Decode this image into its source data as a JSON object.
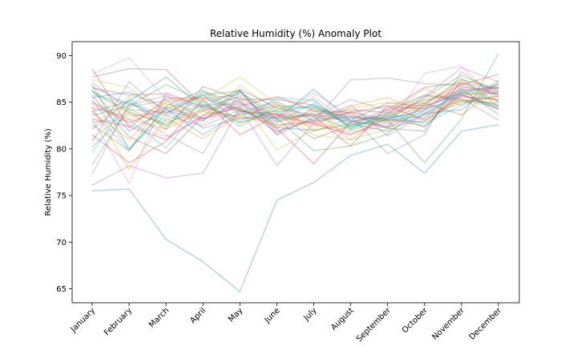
{
  "chart_data": {
    "type": "line",
    "title": "Relative Humidity (%) Anomaly Plot",
    "xlabel": "",
    "ylabel": "Relative Humidity (%)",
    "categories": [
      "January",
      "February",
      "March",
      "April",
      "May",
      "June",
      "July",
      "August",
      "September",
      "October",
      "November",
      "December"
    ],
    "ylim": [
      63.5,
      91.5
    ],
    "yticks": [
      65,
      70,
      75,
      80,
      85,
      90
    ],
    "grid": false,
    "legend": "none",
    "line_opacity": 0.3,
    "palette": [
      "#1f77b4",
      "#ff7f0e",
      "#2ca02c",
      "#d62728",
      "#9467bd",
      "#8c564b",
      "#e377c2",
      "#7f7f7f",
      "#bcbd22",
      "#17becf"
    ],
    "series": [
      {
        "values": [
          75.5,
          75.7,
          70.3,
          67.9,
          64.7,
          74.5,
          76.4,
          79.3,
          80.5,
          77.4,
          81.9,
          82.6
        ]
      },
      {
        "values": [
          84.5,
          83.2,
          82.1,
          84.0,
          83.5,
          82.6,
          82.9,
          81.8,
          82.4,
          83.0,
          85.7,
          86.5
        ]
      },
      {
        "values": [
          86.9,
          80.0,
          84.3,
          85.8,
          86.2,
          83.2,
          83.7,
          82.0,
          83.1,
          78.5,
          83.2,
          90.2
        ]
      },
      {
        "values": [
          83.2,
          82.4,
          81.0,
          83.6,
          84.4,
          82.2,
          78.4,
          82.9,
          83.7,
          84.9,
          87.0,
          85.9
        ]
      },
      {
        "values": [
          76.1,
          78.2,
          76.9,
          77.4,
          84.4,
          78.2,
          82.8,
          84.0,
          83.1,
          85.6,
          88.7,
          87.2
        ]
      },
      {
        "values": [
          87.7,
          88.6,
          88.5,
          84.6,
          83.2,
          83.8,
          81.1,
          82.5,
          84.2,
          86.6,
          87.1,
          86.4
        ]
      },
      {
        "values": [
          88.0,
          89.8,
          85.3,
          83.2,
          85.1,
          83.5,
          86.0,
          83.6,
          82.2,
          88.1,
          88.9,
          85.0
        ]
      },
      {
        "values": [
          77.3,
          84.9,
          83.6,
          82.4,
          84.2,
          82.5,
          82.9,
          87.4,
          87.6,
          87.0,
          86.8,
          85.8
        ]
      },
      {
        "values": [
          81.0,
          84.3,
          82.4,
          84.1,
          85.3,
          79.9,
          82.0,
          82.5,
          83.6,
          84.4,
          85.1,
          84.5
        ]
      },
      {
        "values": [
          85.3,
          80.0,
          83.7,
          85.8,
          82.9,
          85.5,
          85.2,
          82.1,
          84.0,
          82.3,
          86.0,
          86.6
        ]
      },
      {
        "values": [
          86.3,
          81.9,
          84.2,
          83.0,
          86.2,
          82.3,
          82.0,
          82.7,
          81.9,
          83.8,
          84.2,
          87.2
        ]
      },
      {
        "values": [
          84.5,
          77.8,
          83.3,
          81.1,
          83.7,
          84.6,
          81.9,
          83.3,
          83.2,
          85.3,
          86.2,
          84.3
        ]
      },
      {
        "values": [
          82.6,
          79.8,
          84.6,
          86.3,
          84.1,
          83.3,
          79.8,
          80.3,
          81.6,
          84.7,
          87.6,
          84.5
        ]
      },
      {
        "values": [
          81.5,
          78.5,
          80.8,
          85.3,
          81.5,
          83.6,
          82.7,
          81.5,
          83.3,
          82.4,
          86.3,
          86.6
        ]
      },
      {
        "values": [
          86.7,
          84.7,
          85.7,
          83.2,
          84.9,
          81.6,
          84.5,
          82.8,
          83.8,
          85.2,
          85.9,
          84.2
        ]
      },
      {
        "values": [
          85.7,
          81.3,
          79.5,
          83.5,
          86.3,
          81.5,
          83.4,
          83.8,
          82.2,
          81.9,
          87.4,
          86.5
        ]
      },
      {
        "values": [
          83.2,
          76.3,
          86.1,
          84.4,
          82.8,
          83.8,
          82.7,
          81.6,
          82.9,
          85.0,
          83.6,
          87.1
        ]
      },
      {
        "values": [
          80.2,
          83.9,
          81.5,
          79.5,
          86.2,
          81.9,
          83.2,
          83.5,
          79.5,
          81.5,
          88.3,
          85.5
        ]
      },
      {
        "values": [
          85.1,
          83.1,
          84.9,
          82.9,
          86.8,
          84.1,
          81.5,
          81.0,
          82.1,
          84.8,
          83.7,
          86.2
        ]
      },
      {
        "values": [
          79.6,
          85.5,
          82.4,
          86.1,
          83.7,
          84.0,
          84.7,
          82.3,
          83.6,
          83.3,
          86.5,
          85.1
        ]
      },
      {
        "values": [
          84.0,
          85.1,
          87.7,
          84.4,
          85.6,
          83.2,
          86.4,
          83.0,
          82.3,
          84.1,
          85.8,
          84.3
        ]
      },
      {
        "values": [
          86.1,
          83.8,
          82.8,
          84.2,
          85.1,
          82.2,
          84.3,
          80.9,
          83.8,
          86.5,
          84.6,
          87.4
        ]
      },
      {
        "values": [
          83.6,
          84.6,
          86.9,
          85.1,
          82.4,
          84.6,
          84.4,
          82.6,
          83.1,
          82.9,
          85.3,
          84.7
        ]
      },
      {
        "values": [
          88.6,
          82.3,
          85.4,
          85.5,
          84.0,
          83.7,
          83.5,
          80.3,
          84.6,
          84.3,
          86.9,
          88.0
        ]
      },
      {
        "values": [
          84.1,
          79.8,
          85.7,
          84.2,
          84.5,
          81.8,
          83.1,
          84.7,
          81.4,
          83.7,
          85.8,
          84.6
        ]
      },
      {
        "values": [
          82.1,
          85.2,
          82.1,
          86.7,
          85.3,
          85.3,
          84.7,
          83.1,
          84.9,
          84.6,
          85.9,
          86.0
        ]
      },
      {
        "values": [
          84.8,
          82.6,
          81.3,
          83.4,
          83.6,
          84.9,
          82.6,
          84.0,
          82.8,
          83.3,
          86.7,
          85.8
        ]
      },
      {
        "values": [
          78.3,
          84.5,
          85.2,
          82.2,
          83.3,
          83.4,
          83.5,
          85.3,
          84.1,
          85.8,
          85.4,
          83.1
        ]
      },
      {
        "values": [
          87.4,
          86.6,
          83.5,
          85.3,
          87.7,
          84.8,
          82.1,
          83.9,
          82.7,
          84.9,
          86.1,
          85.2
        ]
      },
      {
        "values": [
          82.9,
          83.1,
          80.1,
          84.7,
          84.8,
          82.9,
          84.9,
          82.4,
          83.5,
          82.7,
          84.7,
          86.3
        ]
      },
      {
        "values": [
          85.5,
          86.1,
          84.3,
          81.5,
          83.9,
          85.1,
          83.0,
          83.4,
          83.2,
          84.2,
          86.4,
          83.7
        ]
      },
      {
        "values": [
          83.9,
          81.0,
          85.1,
          85.4,
          85.8,
          83.6,
          82.4,
          84.6,
          85.5,
          83.9,
          85.1,
          85.6
        ]
      },
      {
        "values": [
          86.2,
          84.0,
          82.6,
          84.8,
          82.8,
          84.2,
          85.3,
          82.2,
          83.4,
          85.5,
          87.9,
          86.1
        ]
      },
      {
        "values": [
          85.0,
          82.8,
          84.5,
          83.2,
          84.6,
          85.6,
          84.1,
          83.9,
          84.6,
          83.1,
          85.6,
          85.3
        ]
      },
      {
        "values": [
          80.8,
          87.2,
          83.8,
          86.1,
          85.0,
          83.0,
          83.8,
          82.9,
          82.5,
          84.6,
          86.0,
          86.8
        ]
      },
      {
        "values": [
          86.5,
          85.8,
          85.9,
          84.5,
          86.4,
          84.4,
          83.6,
          84.2,
          83.9,
          85.7,
          85.2,
          84.9
        ]
      },
      {
        "values": [
          84.3,
          83.5,
          84.0,
          82.6,
          85.4,
          83.1,
          85.6,
          82.8,
          84.3,
          84.4,
          86.6,
          86.2
        ]
      },
      {
        "values": [
          87.1,
          84.2,
          83.9,
          85.7,
          84.2,
          82.8,
          84.0,
          83.5,
          83.0,
          83.6,
          84.9,
          85.7
        ]
      },
      {
        "values": [
          82.4,
          85.7,
          84.8,
          84.0,
          83.4,
          84.8,
          82.9,
          84.4,
          85.0,
          84.9,
          87.3,
          85.0
        ]
      },
      {
        "values": [
          85.8,
          84.9,
          83.0,
          85.0,
          86.0,
          83.9,
          84.6,
          83.0,
          83.4,
          83.8,
          86.1,
          86.9
        ]
      }
    ]
  }
}
